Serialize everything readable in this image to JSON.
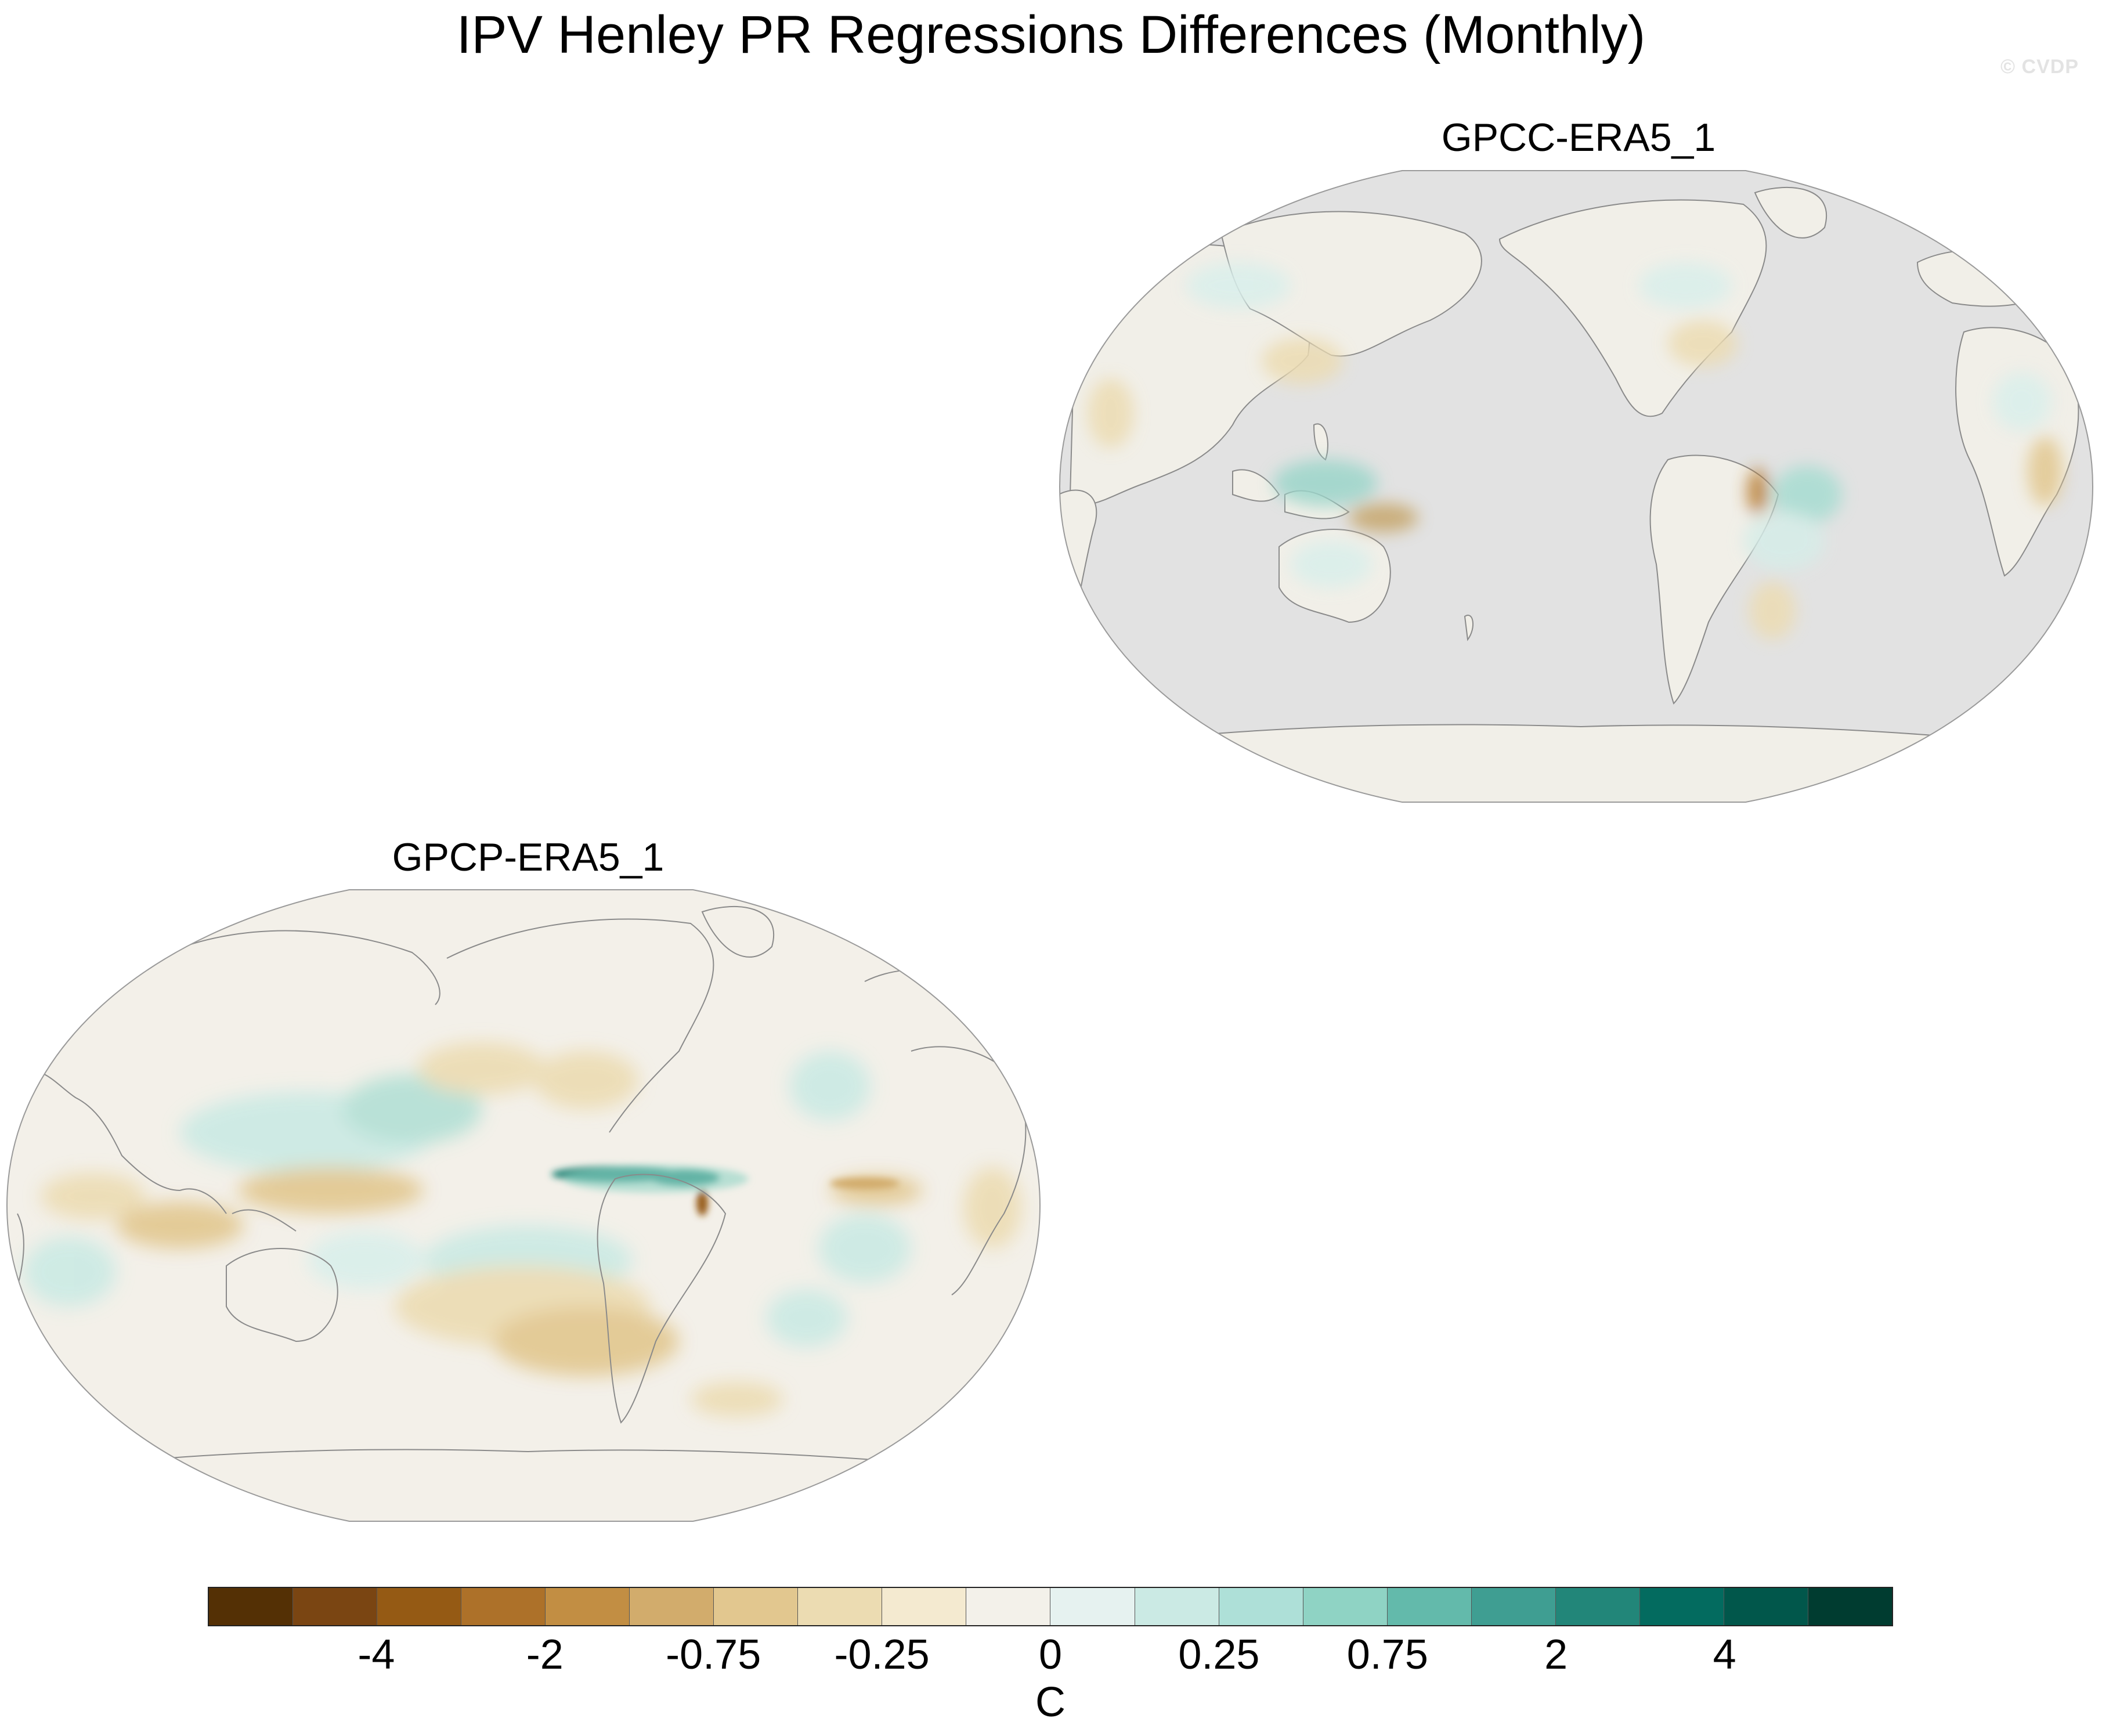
{
  "title": "IPV Henley PR Regressions Differences (Monthly)",
  "watermark": "© CVDP",
  "panels": [
    {
      "title": "GPCC-ERA5_1"
    },
    {
      "title": "GPCP-ERA5_1"
    }
  ],
  "colorbar": {
    "colors": [
      "#543005",
      "#7a4512",
      "#955a14",
      "#ad7129",
      "#c28e43",
      "#d2ac6c",
      "#e2c78f",
      "#ecdcb2",
      "#f4ead0",
      "#f3f1ea",
      "#e6f2f0",
      "#cbeae4",
      "#aee0d8",
      "#8fd3c4",
      "#63baab",
      "#3f9e92",
      "#228679",
      "#036b5f",
      "#01574b",
      "#003c30"
    ],
    "tick_labels": [
      "-4",
      "-2",
      "-0.75",
      "-0.25",
      "0",
      "0.25",
      "0.75",
      "2",
      "4"
    ],
    "units": "C"
  },
  "map_style": {
    "missing_fill": "#e2e2e2",
    "neutral_fill": "#f3f0e9",
    "coast_color": "#8a8a8a"
  }
}
